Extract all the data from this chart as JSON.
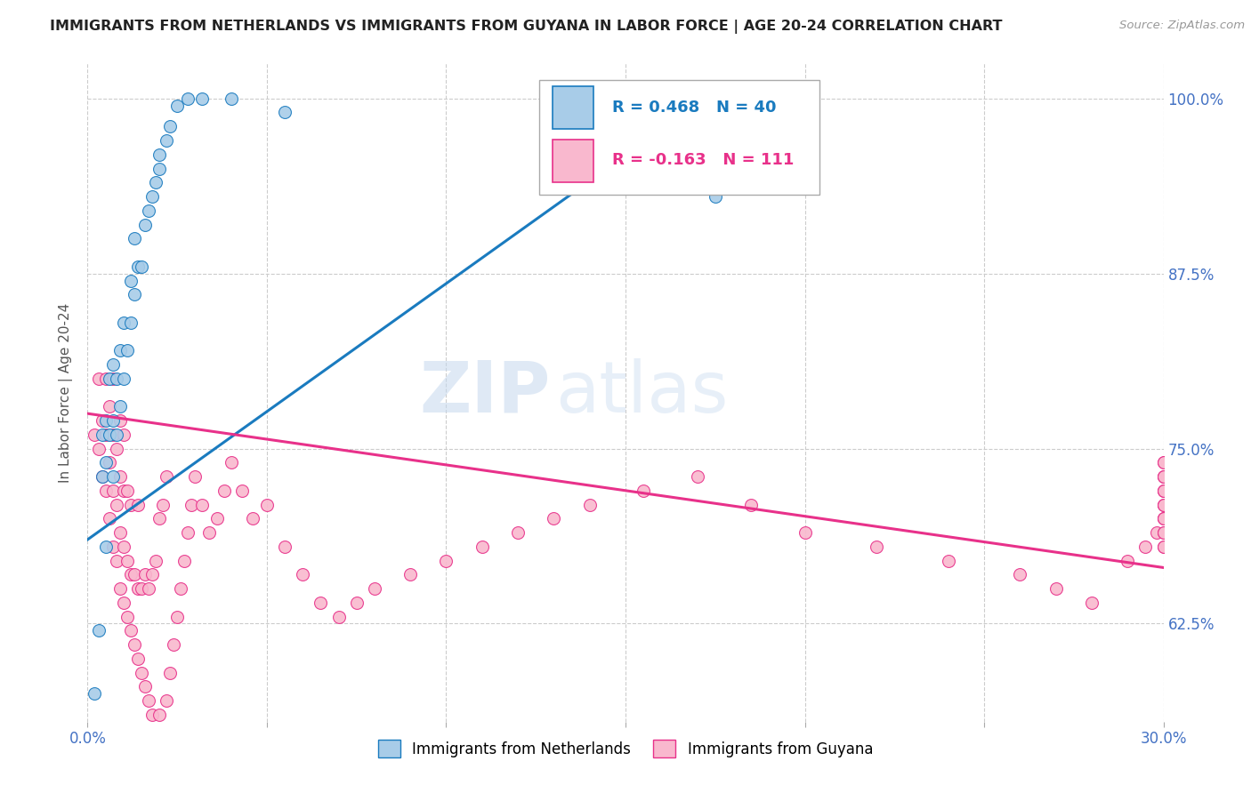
{
  "title": "IMMIGRANTS FROM NETHERLANDS VS IMMIGRANTS FROM GUYANA IN LABOR FORCE | AGE 20-24 CORRELATION CHART",
  "source": "Source: ZipAtlas.com",
  "ylabel": "In Labor Force | Age 20-24",
  "xlim": [
    0.0,
    0.3
  ],
  "ylim": [
    0.555,
    1.025
  ],
  "xtick_vals": [
    0.0,
    0.05,
    0.1,
    0.15,
    0.2,
    0.25,
    0.3
  ],
  "xticklabels": [
    "0.0%",
    "",
    "",
    "",
    "",
    "",
    "30.0%"
  ],
  "ytick_vals": [
    0.625,
    0.75,
    0.875,
    1.0
  ],
  "yticklabels": [
    "62.5%",
    "75.0%",
    "87.5%",
    "100.0%"
  ],
  "netherlands_color": "#a8cce8",
  "guyana_color": "#f9b8ce",
  "netherlands_R": 0.468,
  "netherlands_N": 40,
  "guyana_R": -0.163,
  "guyana_N": 111,
  "netherlands_line_color": "#1a7bbf",
  "guyana_line_color": "#e8318a",
  "nl_line_x": [
    0.0,
    0.175
  ],
  "nl_line_y": [
    0.685,
    1.005
  ],
  "gu_line_x": [
    0.0,
    0.3
  ],
  "gu_line_y": [
    0.775,
    0.665
  ],
  "netherlands_x": [
    0.002,
    0.003,
    0.004,
    0.004,
    0.005,
    0.005,
    0.005,
    0.006,
    0.006,
    0.007,
    0.007,
    0.007,
    0.008,
    0.008,
    0.009,
    0.009,
    0.01,
    0.01,
    0.011,
    0.012,
    0.012,
    0.013,
    0.013,
    0.014,
    0.015,
    0.016,
    0.017,
    0.018,
    0.019,
    0.02,
    0.02,
    0.022,
    0.023,
    0.025,
    0.028,
    0.032,
    0.04,
    0.055,
    0.15,
    0.175
  ],
  "netherlands_y": [
    0.575,
    0.62,
    0.73,
    0.76,
    0.68,
    0.74,
    0.77,
    0.76,
    0.8,
    0.73,
    0.77,
    0.81,
    0.76,
    0.8,
    0.78,
    0.82,
    0.8,
    0.84,
    0.82,
    0.84,
    0.87,
    0.86,
    0.9,
    0.88,
    0.88,
    0.91,
    0.92,
    0.93,
    0.94,
    0.95,
    0.96,
    0.97,
    0.98,
    0.995,
    1.0,
    1.0,
    1.0,
    0.99,
    0.975,
    0.93
  ],
  "guyana_x": [
    0.002,
    0.003,
    0.003,
    0.004,
    0.004,
    0.005,
    0.005,
    0.005,
    0.006,
    0.006,
    0.006,
    0.007,
    0.007,
    0.007,
    0.007,
    0.008,
    0.008,
    0.008,
    0.009,
    0.009,
    0.009,
    0.009,
    0.01,
    0.01,
    0.01,
    0.01,
    0.011,
    0.011,
    0.011,
    0.012,
    0.012,
    0.012,
    0.013,
    0.013,
    0.014,
    0.014,
    0.014,
    0.015,
    0.015,
    0.016,
    0.016,
    0.017,
    0.017,
    0.018,
    0.018,
    0.019,
    0.019,
    0.02,
    0.02,
    0.021,
    0.021,
    0.022,
    0.022,
    0.023,
    0.024,
    0.025,
    0.026,
    0.027,
    0.028,
    0.029,
    0.03,
    0.032,
    0.034,
    0.036,
    0.038,
    0.04,
    0.043,
    0.046,
    0.05,
    0.055,
    0.06,
    0.065,
    0.07,
    0.075,
    0.08,
    0.09,
    0.1,
    0.11,
    0.12,
    0.13,
    0.14,
    0.155,
    0.17,
    0.185,
    0.2,
    0.22,
    0.24,
    0.26,
    0.27,
    0.28,
    0.29,
    0.295,
    0.298,
    0.3,
    0.3,
    0.3,
    0.3,
    0.3,
    0.3,
    0.3,
    0.3,
    0.3,
    0.3,
    0.3,
    0.3,
    0.3,
    0.3,
    0.3,
    0.3,
    0.3,
    0.3
  ],
  "guyana_y": [
    0.76,
    0.75,
    0.8,
    0.73,
    0.77,
    0.72,
    0.76,
    0.8,
    0.7,
    0.74,
    0.78,
    0.68,
    0.72,
    0.76,
    0.8,
    0.67,
    0.71,
    0.75,
    0.65,
    0.69,
    0.73,
    0.77,
    0.64,
    0.68,
    0.72,
    0.76,
    0.63,
    0.67,
    0.72,
    0.62,
    0.66,
    0.71,
    0.61,
    0.66,
    0.6,
    0.65,
    0.71,
    0.59,
    0.65,
    0.58,
    0.66,
    0.57,
    0.65,
    0.56,
    0.66,
    0.55,
    0.67,
    0.56,
    0.7,
    0.55,
    0.71,
    0.57,
    0.73,
    0.59,
    0.61,
    0.63,
    0.65,
    0.67,
    0.69,
    0.71,
    0.73,
    0.71,
    0.69,
    0.7,
    0.72,
    0.74,
    0.72,
    0.7,
    0.71,
    0.68,
    0.66,
    0.64,
    0.63,
    0.64,
    0.65,
    0.66,
    0.67,
    0.68,
    0.69,
    0.7,
    0.71,
    0.72,
    0.73,
    0.71,
    0.69,
    0.68,
    0.67,
    0.66,
    0.65,
    0.64,
    0.67,
    0.68,
    0.69,
    0.7,
    0.71,
    0.72,
    0.73,
    0.74,
    0.68,
    0.69,
    0.7,
    0.71,
    0.72,
    0.73,
    0.74,
    0.68,
    0.69,
    0.7,
    0.71,
    0.72,
    0.73
  ]
}
